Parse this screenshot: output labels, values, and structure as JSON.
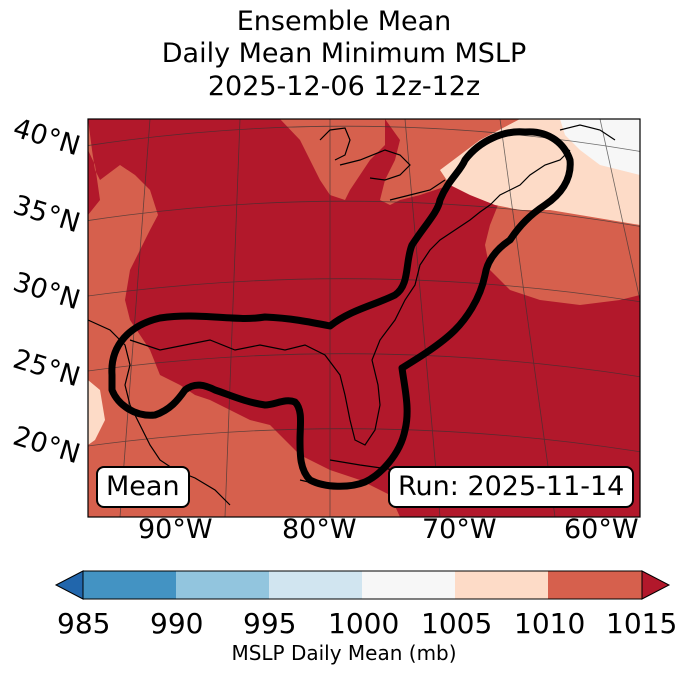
{
  "title": {
    "line1": "Ensemble Mean",
    "line2": "Daily Mean Minimum MSLP",
    "line3": "2025-12-06 12z-12z"
  },
  "map": {
    "lat_labels": [
      "40°N",
      "35°N",
      "30°N",
      "25°N",
      "20°N"
    ],
    "lon_labels": [
      "90°W",
      "80°W",
      "70°W",
      "60°W"
    ],
    "mean_label": "Mean",
    "run_label": "Run: 2025-11-14",
    "colors": {
      "bin_1010_1015": "#b2182b",
      "bin_1005_1010": "#d6604d",
      "bin_1000_1005": "#fddbc7",
      "bin_995_1000": "#f7f7f7"
    }
  },
  "colorbar": {
    "ticks": [
      "985",
      "990",
      "995",
      "1000",
      "1005",
      "1010",
      "1015"
    ],
    "colors": [
      "#2166ac",
      "#4393c3",
      "#92c5de",
      "#d1e5f0",
      "#f7f7f7",
      "#fddbc7",
      "#d6604d",
      "#b2182b"
    ],
    "label": "MSLP Daily Mean (mb)"
  }
}
